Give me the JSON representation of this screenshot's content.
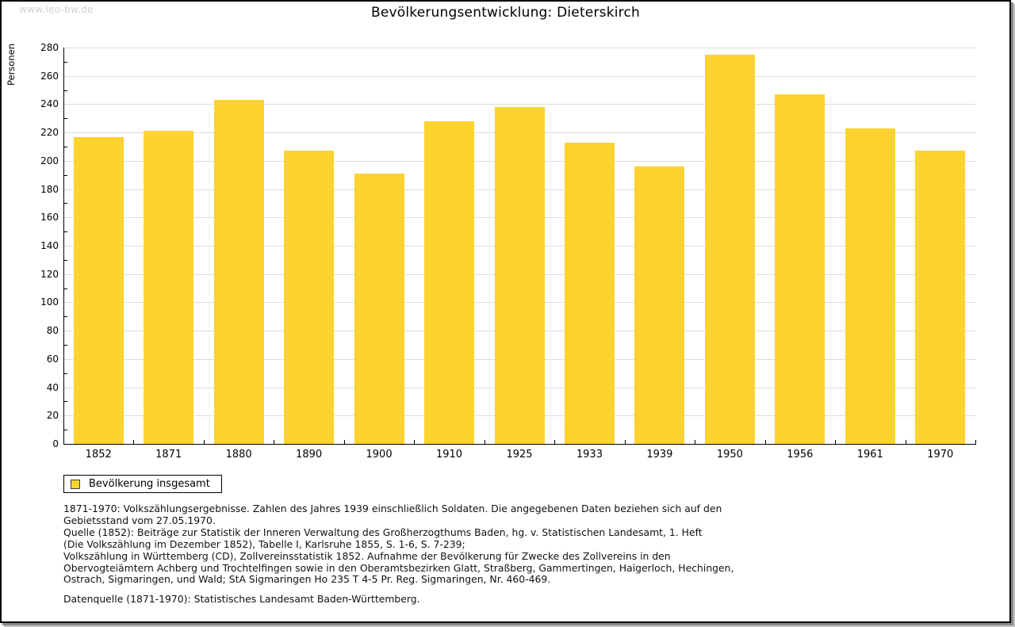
{
  "page": {
    "watermark": "www.leo-bw.de",
    "title": "Bevölkerungsentwicklung: Dieterskirch"
  },
  "chart_data": {
    "type": "bar",
    "title": "Bevölkerungsentwicklung: Dieterskirch",
    "xlabel": "",
    "ylabel": "Personen",
    "categories": [
      "1852",
      "1871",
      "1880",
      "1890",
      "1900",
      "1910",
      "1925",
      "1933",
      "1939",
      "1950",
      "1956",
      "1961",
      "1970"
    ],
    "values": [
      217,
      221,
      243,
      207,
      191,
      228,
      238,
      213,
      196,
      275,
      247,
      223,
      207
    ],
    "series_name": "Bevölkerung insgesamt",
    "ylim": [
      0,
      280
    ],
    "ytick_step": 20,
    "ytick_minor_step": 10,
    "grid": "horizontal",
    "bar_color": "#fcd32f",
    "gridline_color": "#dcdcdc",
    "legend_position": "bottom-left"
  },
  "legend": {
    "label": "Bevölkerung insgesamt",
    "swatch_color": "#fcd32f"
  },
  "footnotes": {
    "block": "1871-1970: Volkszählungsergebnisse. Zahlen des Jahres 1939 einschließlich Soldaten. Die angegebenen Daten beziehen sich auf den\nGebietsstand vom 27.05.1970.\nQuelle (1852): Beiträge zur Statistik der Inneren Verwaltung des Großherzogthums Baden, hg. v. Statistischen Landesamt, 1. Heft\n(Die Volkszählung im Dezember 1852), Tabelle I, Karlsruhe 1855, S. 1-6, S. 7-239;\nVolkszählung in Württemberg (CD), Zollvereinsstatistik 1852. Aufnahme der Bevölkerung für Zwecke des Zollvereins in den\nObervogteiämtern Achberg und Trochtelfingen sowie in den Oberamtsbezirken Glatt, Straßberg, Gammertingen, Haigerloch, Hechingen,\nOstrach, Sigmaringen, und Wald; StA Sigmaringen Ho 235 T 4-5 Pr. Reg. Sigmaringen, Nr. 460-469.",
    "datasource": "Datenquelle (1871-1970): Statistisches Landesamt Baden-Württemberg."
  }
}
